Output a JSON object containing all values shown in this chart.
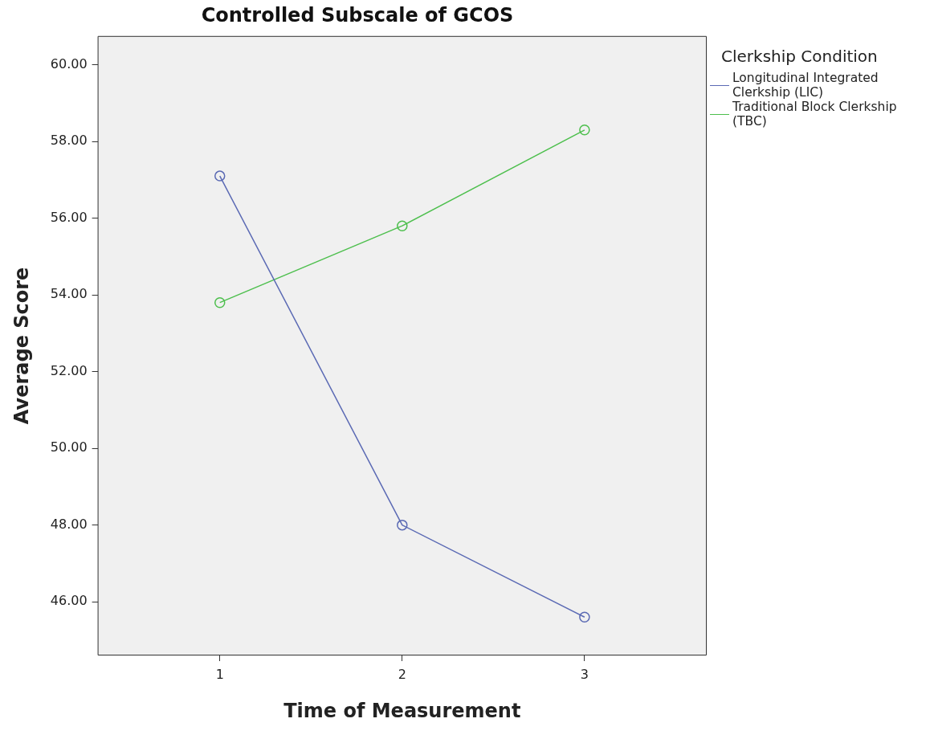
{
  "chart_data": {
    "type": "line",
    "title": "Controlled Subscale of GCOS",
    "xlabel": "Time of Measurement",
    "ylabel": "Average Score",
    "legend_title": "Clerkship Condition",
    "x": [
      1,
      2,
      3
    ],
    "series": [
      {
        "name": "Longitudinal Integrated Clerkship (LIC)",
        "color": "#5b6ab4",
        "values": [
          57.1,
          48.0,
          45.6
        ]
      },
      {
        "name": "Traditional Block Clerkship (TBC)",
        "color": "#4dbf4d",
        "values": [
          53.8,
          55.8,
          58.3
        ]
      }
    ],
    "xlim": [
      0.33,
      3.67
    ],
    "xticks": [
      1,
      2,
      3
    ],
    "ylim": [
      44.6,
      60.75
    ],
    "yticks": [
      {
        "value": 46,
        "label": "46.00"
      },
      {
        "value": 48,
        "label": "48.00"
      },
      {
        "value": 50,
        "label": "50.00"
      },
      {
        "value": 52,
        "label": "52.00"
      },
      {
        "value": 54,
        "label": "54.00"
      },
      {
        "value": 56,
        "label": "56.00"
      },
      {
        "value": 58,
        "label": "58.00"
      },
      {
        "value": 60,
        "label": "60.00"
      }
    ],
    "grid": false,
    "legend": "top right",
    "marker": "circle",
    "line_style": "solid"
  }
}
